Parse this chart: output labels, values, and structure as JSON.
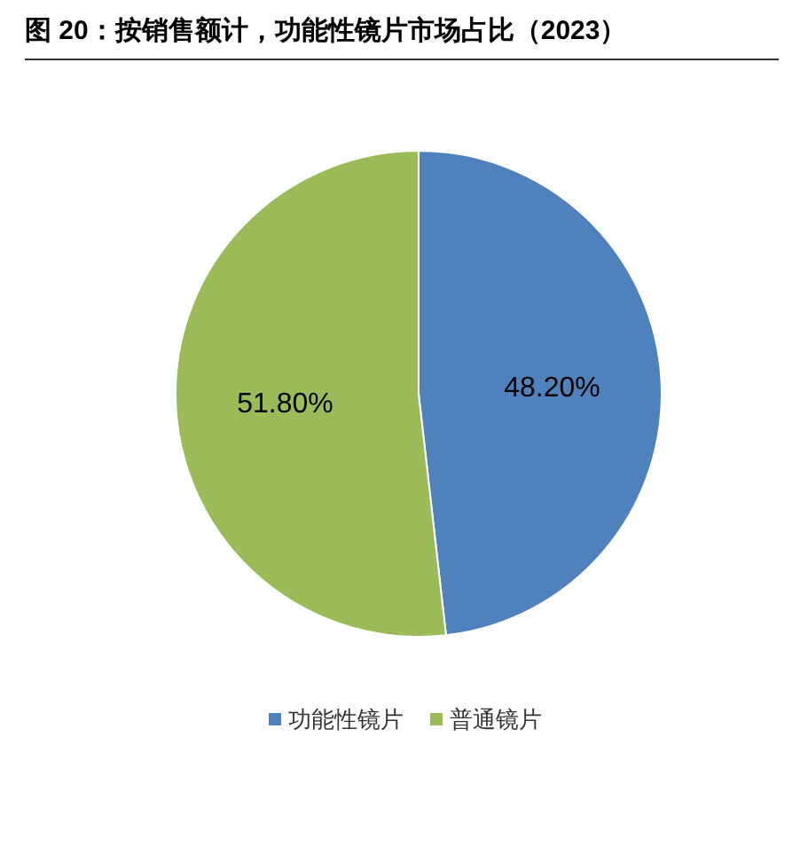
{
  "chart_data": {
    "type": "pie",
    "title": "图 20：按销售额计，功能性镜片市场占比（2023）",
    "categories": [
      "功能性镜片",
      "普通镜片"
    ],
    "values": [
      48.2,
      51.8
    ],
    "colors": [
      "#4f81bd",
      "#9bbb59"
    ],
    "value_labels": [
      "48.20%",
      "51.80%"
    ],
    "legend": "bottom"
  }
}
